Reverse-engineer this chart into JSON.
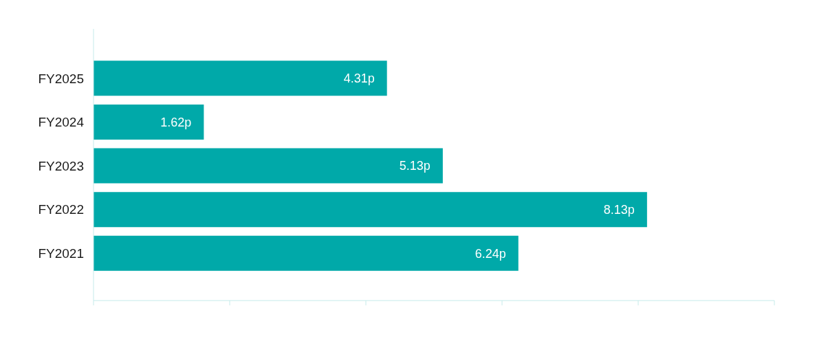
{
  "chart_data": {
    "type": "bar",
    "orientation": "horizontal",
    "categories": [
      "FY2025",
      "FY2024",
      "FY2023",
      "FY2022",
      "FY2021"
    ],
    "values": [
      4.31,
      1.62,
      5.13,
      8.13,
      6.24
    ],
    "value_labels": [
      "4.31p",
      "1.62p",
      "5.13p",
      "8.13p",
      "6.24p"
    ],
    "color": "#00a9a9",
    "xlim": [
      0,
      10
    ],
    "xticks": [
      {
        "value": 0,
        "label": null
      },
      {
        "value": 2,
        "label": null
      },
      {
        "value": 4,
        "label": null
      },
      {
        "value": 6,
        "label": null
      },
      {
        "value": 8,
        "label": null
      },
      {
        "value": 10,
        "label": null
      }
    ],
    "tick_labels": "y",
    "grid": false,
    "legend": false
  }
}
